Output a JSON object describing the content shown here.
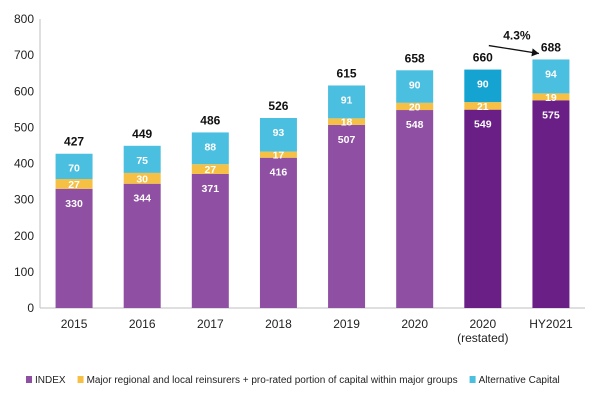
{
  "chart_data": {
    "type": "bar",
    "stacked": true,
    "title": "",
    "xlabel": "",
    "ylabel": "",
    "ylim": [
      0,
      800
    ],
    "ytick_step": 100,
    "grid": false,
    "legend_position": "bottom",
    "categories": [
      "2015",
      "2016",
      "2017",
      "2018",
      "2019",
      "2020",
      "2020\n(restated)",
      "HY2021"
    ],
    "series": [
      {
        "name": "INDEX",
        "color": "#8f4fa3",
        "values": [
          330,
          344,
          371,
          416,
          507,
          548,
          549,
          575
        ]
      },
      {
        "name": "Major regional and local reinsurers + pro-rated portion of capital within major groups",
        "color": "#f5c043",
        "values": [
          27,
          30,
          27,
          17,
          18,
          20,
          21,
          19
        ]
      },
      {
        "name": "Alternative Capital",
        "color": "#4bbfe0",
        "values": [
          70,
          75,
          88,
          93,
          91,
          90,
          90,
          94
        ]
      }
    ],
    "totals": [
      427,
      449,
      486,
      526,
      615,
      658,
      660,
      688
    ],
    "highlight_colors": {
      "index": "#6a1f86",
      "alternative": "#15a3d1"
    },
    "highlight_categories": [
      6,
      7
    ],
    "annotations": [
      {
        "text": "4.3%",
        "from_category": 6,
        "to_category": 7
      }
    ]
  }
}
